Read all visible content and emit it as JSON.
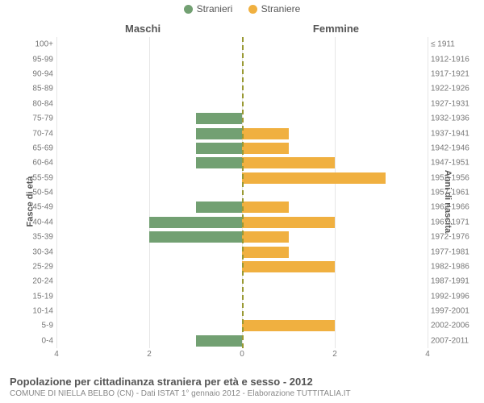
{
  "legend": {
    "male": {
      "label": "Stranieri",
      "color": "#72a072"
    },
    "female": {
      "label": "Straniere",
      "color": "#f0b040"
    }
  },
  "titles": {
    "left_side": "Maschi",
    "right_side": "Femmine",
    "y_left": "Fasce di età",
    "y_right": "Anni di nascita"
  },
  "caption": {
    "line1": "Popolazione per cittadinanza straniera per età e sesso - 2012",
    "line2": "COMUNE DI NIELLA BELBO (CN) - Dati ISTAT 1° gennaio 2012 - Elaborazione TUTTITALIA.IT"
  },
  "chart": {
    "type": "population-pyramid",
    "x_max": 4,
    "x_ticks": [
      4,
      2,
      0,
      2,
      4
    ],
    "grid_color": "#e6e6e6",
    "center_line_color": "#999933",
    "background_color": "#ffffff",
    "male_color": "#72a072",
    "female_color": "#f0b040",
    "label_fontsize": 10,
    "rows": [
      {
        "age": "0-4",
        "years": "2007-2011",
        "male": 1,
        "female": 0
      },
      {
        "age": "5-9",
        "years": "2002-2006",
        "male": 0,
        "female": 2
      },
      {
        "age": "10-14",
        "years": "1997-2001",
        "male": 0,
        "female": 0
      },
      {
        "age": "15-19",
        "years": "1992-1996",
        "male": 0,
        "female": 0
      },
      {
        "age": "20-24",
        "years": "1987-1991",
        "male": 0,
        "female": 0
      },
      {
        "age": "25-29",
        "years": "1982-1986",
        "male": 0,
        "female": 2
      },
      {
        "age": "30-34",
        "years": "1977-1981",
        "male": 0,
        "female": 1
      },
      {
        "age": "35-39",
        "years": "1972-1976",
        "male": 2,
        "female": 1
      },
      {
        "age": "40-44",
        "years": "1967-1971",
        "male": 2,
        "female": 2
      },
      {
        "age": "45-49",
        "years": "1962-1966",
        "male": 1,
        "female": 1
      },
      {
        "age": "50-54",
        "years": "1957-1961",
        "male": 0,
        "female": 0
      },
      {
        "age": "55-59",
        "years": "1952-1956",
        "male": 0,
        "female": 3.1
      },
      {
        "age": "60-64",
        "years": "1947-1951",
        "male": 1,
        "female": 2
      },
      {
        "age": "65-69",
        "years": "1942-1946",
        "male": 1,
        "female": 1
      },
      {
        "age": "70-74",
        "years": "1937-1941",
        "male": 1,
        "female": 1
      },
      {
        "age": "75-79",
        "years": "1932-1936",
        "male": 1,
        "female": 0
      },
      {
        "age": "80-84",
        "years": "1927-1931",
        "male": 0,
        "female": 0
      },
      {
        "age": "85-89",
        "years": "1922-1926",
        "male": 0,
        "female": 0
      },
      {
        "age": "90-94",
        "years": "1917-1921",
        "male": 0,
        "female": 0
      },
      {
        "age": "95-99",
        "years": "1912-1916",
        "male": 0,
        "female": 0
      },
      {
        "age": "100+",
        "years": "≤ 1911",
        "male": 0,
        "female": 0
      }
    ]
  }
}
